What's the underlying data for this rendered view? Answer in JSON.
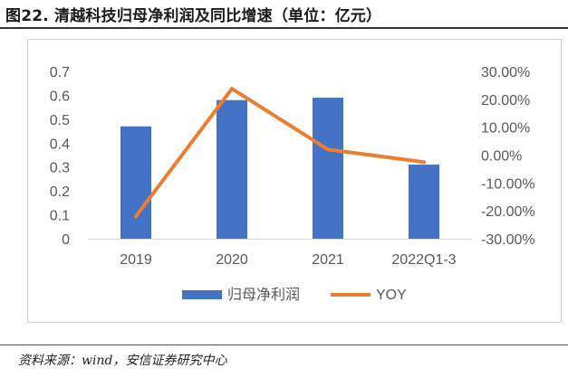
{
  "figure": {
    "title": "图22. 清越科技归母净利润及同比增速（单位：亿元）",
    "source": "资料来源：wind，安信证券研究中心"
  },
  "colors": {
    "bar": "#4472C4",
    "line": "#ED7D31",
    "axis_text": "#595959",
    "axis_line": "#D9D9D9"
  },
  "chart_data": {
    "type": "bar",
    "categories": [
      "2019",
      "2020",
      "2021",
      "2022Q1-3"
    ],
    "series": [
      {
        "name": "归母净利润",
        "type": "bar",
        "axis": "left",
        "values": [
          0.47,
          0.58,
          0.59,
          0.31
        ]
      },
      {
        "name": "YOY",
        "type": "line",
        "axis": "right",
        "values": [
          -22.0,
          23.8,
          2.0,
          -2.5
        ]
      }
    ],
    "left_axis": {
      "ylim": [
        0,
        0.7
      ],
      "ticks": [
        "0",
        "0.1",
        "0.2",
        "0.3",
        "0.4",
        "0.5",
        "0.6",
        "0.7"
      ]
    },
    "right_axis": {
      "ylim": [
        -30,
        30
      ],
      "ticks": [
        "-30.00%",
        "-20.00%",
        "-10.00%",
        "0.00%",
        "10.00%",
        "20.00%",
        "30.00%"
      ]
    },
    "legend": {
      "position": "bottom",
      "entries": [
        "归母净利润",
        "YOY"
      ]
    },
    "grid": false
  }
}
